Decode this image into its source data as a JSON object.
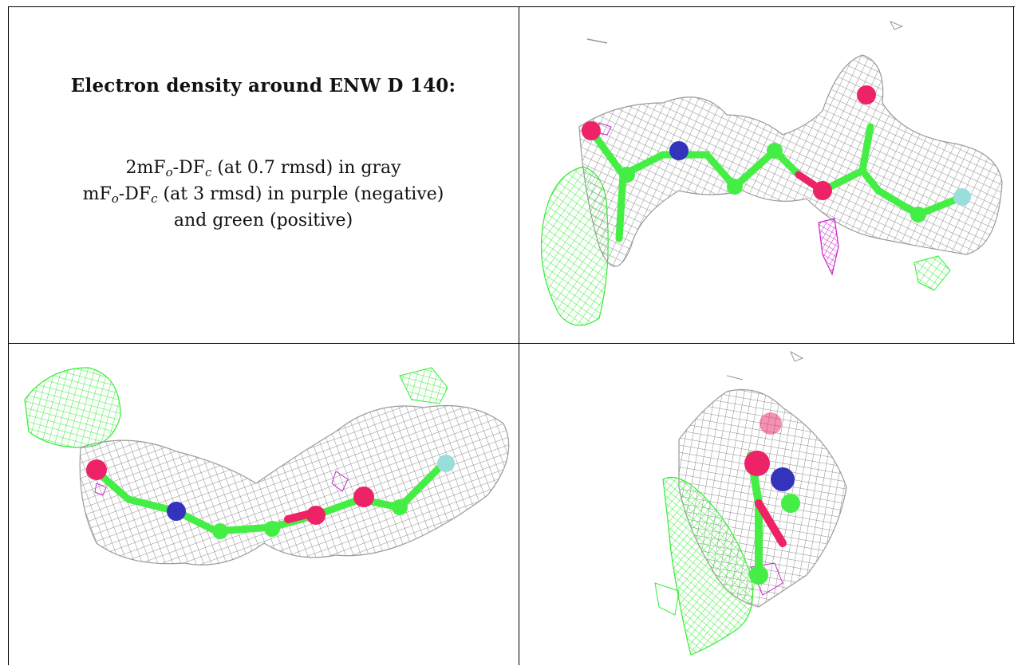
{
  "legend": {
    "title": "Electron density around ENW D 140:",
    "line1": {
      "a": "2mF",
      "a_sub": "o",
      "b": "-DF",
      "b_sub": "c",
      "rest": " (at 0.7 rmsd) in gray"
    },
    "line2": {
      "a": "mF",
      "a_sub": "o",
      "b": "-DF",
      "b_sub": "c",
      "rest": " (at 3 rmsd) in purple (negative)"
    },
    "line3": "and green (positive)"
  },
  "colors": {
    "map_2fofc": "#8c8c8c",
    "map_negative": "#cc22cc",
    "map_positive": "#33ee33",
    "carbon": "#44ee44",
    "oxygen": "#ee2266",
    "nitrogen": "#3333bb",
    "fluorine": "#99dddd"
  },
  "panels": [
    {
      "view": "front-view"
    },
    {
      "view": "side-view"
    },
    {
      "view": "end-on-view"
    }
  ]
}
